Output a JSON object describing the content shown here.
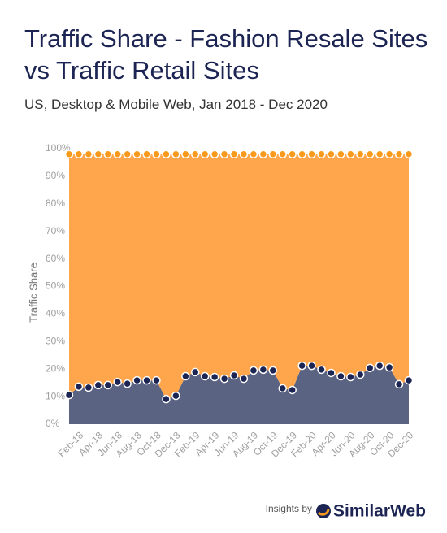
{
  "chart_data": {
    "type": "stacked_area",
    "title": "Traffic Share - Fashion Resale Sites vs Traffic Retail Sites",
    "subtitle": "US, Desktop & Mobile Web, Jan 2018 - Dec 2020",
    "y_label": "Traffic Share",
    "categories": [
      null,
      "Feb-18",
      null,
      "Apr-18",
      null,
      "Jun-18",
      null,
      "Aug-18",
      null,
      "Oct-18",
      null,
      "Dec-18",
      null,
      "Feb-19",
      null,
      "Apr-19",
      null,
      "Jun-19",
      null,
      "Aug-19",
      null,
      "Oct-19",
      null,
      "Dec-19",
      null,
      "Feb-20",
      null,
      "Apr-20",
      null,
      "Jun-20",
      null,
      "Aug-20",
      null,
      "Oct-20",
      null,
      "Dec-20"
    ],
    "series": [
      {
        "color": "#5b6382",
        "marker_color": "#1b2452",
        "values": [
          10.6,
          13.6,
          13.3,
          14.2,
          14.2,
          15.3,
          14.7,
          15.9,
          15.9,
          15.9,
          9.1,
          10.3,
          17.4,
          18.9,
          17.4,
          17.1,
          16.5,
          17.7,
          16.5,
          19.5,
          19.8,
          19.5,
          13.0,
          12.4,
          21.2,
          21.2,
          19.8,
          18.6,
          17.4,
          17.1,
          18.0,
          20.4,
          21.2,
          20.6,
          14.5,
          15.9
        ]
      },
      {
        "color": "#ffa64d",
        "marker_color": "#f99a1c",
        "values": [
          87.4,
          84.4,
          84.7,
          83.8,
          83.8,
          82.7,
          83.3,
          82.1,
          82.1,
          82.1,
          88.9,
          87.7,
          80.6,
          79.1,
          80.6,
          80.9,
          81.5,
          80.3,
          81.5,
          78.5,
          78.2,
          78.5,
          85.0,
          85.6,
          76.8,
          76.8,
          78.2,
          79.4,
          80.6,
          80.9,
          80.0,
          77.6,
          76.8,
          77.4,
          83.5,
          82.1
        ]
      }
    ],
    "ylim": [
      0,
      100
    ],
    "yticks": [
      {
        "value": 0,
        "label": "0%"
      },
      {
        "value": 10,
        "label": "10%"
      },
      {
        "value": 20,
        "label": "20%"
      },
      {
        "value": 30,
        "label": "30%"
      },
      {
        "value": 40,
        "label": "40%"
      },
      {
        "value": 50,
        "label": "50%"
      },
      {
        "value": 60,
        "label": "60%"
      },
      {
        "value": 70,
        "label": "70%"
      },
      {
        "value": 80,
        "label": "80%"
      },
      {
        "value": 90,
        "label": "90%"
      },
      {
        "value": 100,
        "label": "100%"
      }
    ]
  },
  "footer": {
    "prefix": "Insights by",
    "brand": "SimilarWeb"
  }
}
